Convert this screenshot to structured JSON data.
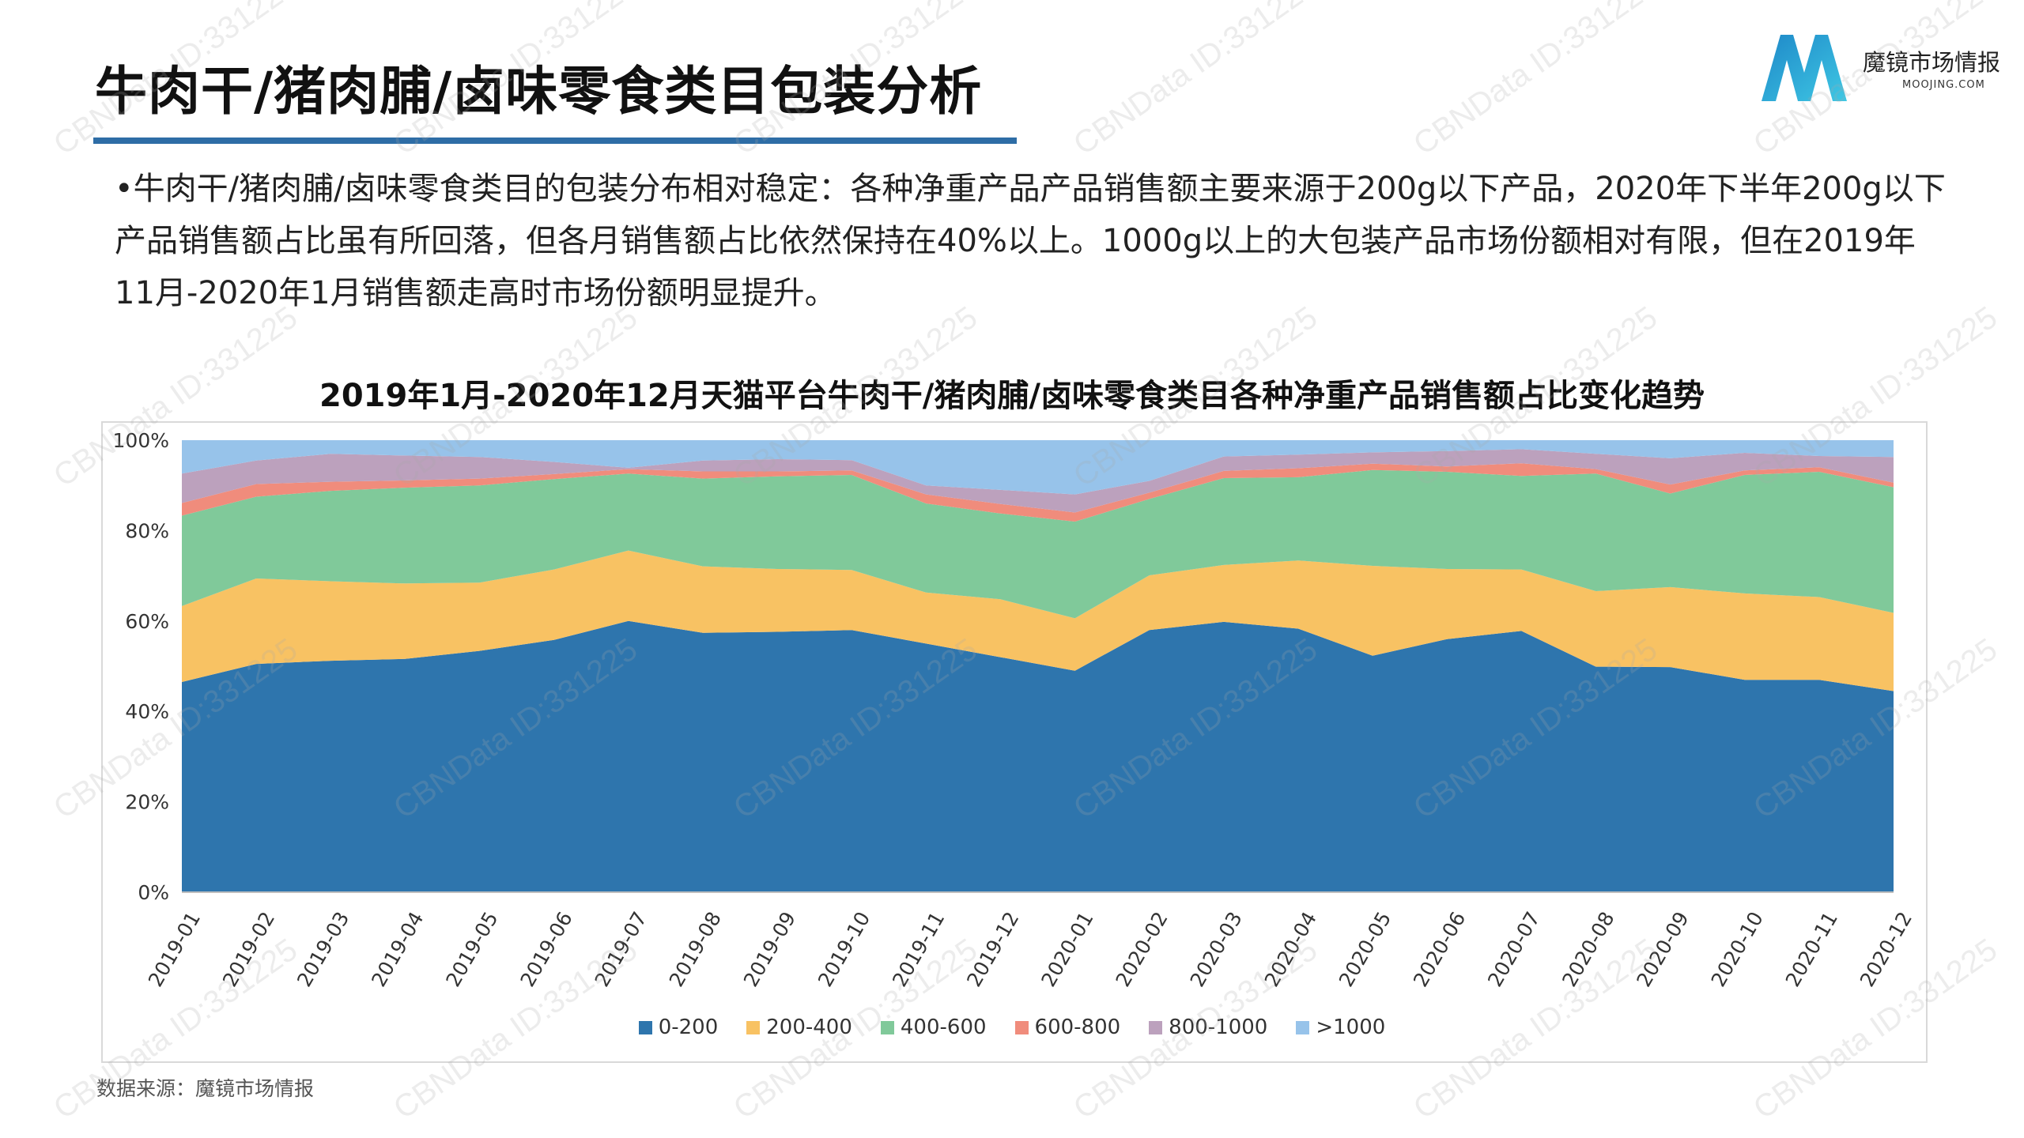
{
  "header": {
    "title": "牛肉干/猪肉脯/卤味零食类目包装分析"
  },
  "logo": {
    "name": "魔镜市场情报",
    "sub": "MOOJING.COM",
    "icon": "moojing-m-logo",
    "colors": [
      "#1e88c8",
      "#3fc8e4"
    ]
  },
  "summary": {
    "text": "•牛肉干/猪肉脯/卤味零食类目的包装分布相对稳定：各种净重产品产品销售额主要来源于200g以下产品，2020年下半年200g以下产品销售额占比虽有所回落，但各月销售额占比依然保持在40%以上。1000g以上的大包装产品市场份额相对有限，但在2019年11月-2020年1月销售额走高时市场份额明显提升。"
  },
  "source": "数据来源：魔镜市场情报",
  "watermark": "CBNData ID:331225",
  "chart_data": {
    "type": "area",
    "stacked": true,
    "title": "2019年1月-2020年12月天猫平台牛肉干/猪肉脯/卤味零食类目各种净重产品销售额占比变化趋势",
    "xlabel": "",
    "ylabel": "",
    "ylim": [
      0,
      100
    ],
    "yticks": [
      "0%",
      "20%",
      "40%",
      "60%",
      "80%",
      "100%"
    ],
    "legend_position": "bottom",
    "grid": false,
    "categories": [
      "2019-01",
      "2019-02",
      "2019-03",
      "2019-04",
      "2019-05",
      "2019-06",
      "2019-07",
      "2019-08",
      "2019-09",
      "2019-10",
      "2019-11",
      "2019-12",
      "2020-01",
      "2020-02",
      "2020-03",
      "2020-04",
      "2020-05",
      "2020-06",
      "2020-07",
      "2020-08",
      "2020-09",
      "2020-10",
      "2020-11",
      "2020-12"
    ],
    "series": [
      {
        "name": "0-200",
        "color": "#2e75ad",
        "values": [
          46.5,
          50.5,
          51.2,
          51.6,
          53.4,
          55.8,
          60.0,
          57.4,
          57.6,
          58.0,
          55.0,
          52.0,
          49.0,
          58.0,
          59.8,
          58.3,
          52.3,
          56.0,
          57.8,
          49.9,
          49.8,
          47.0,
          47.0,
          44.5
        ]
      },
      {
        "name": "200-400",
        "color": "#f8c263",
        "values": [
          16.8,
          18.9,
          17.6,
          16.7,
          15.1,
          15.6,
          15.6,
          14.7,
          13.9,
          13.3,
          11.3,
          12.8,
          11.6,
          12.1,
          12.6,
          15.1,
          19.9,
          15.5,
          13.6,
          16.7,
          17.7,
          19.1,
          18.3,
          17.3
        ]
      },
      {
        "name": "400-600",
        "color": "#80c99a",
        "values": [
          20.0,
          18.1,
          20.0,
          21.2,
          21.5,
          20.0,
          17.0,
          19.4,
          20.5,
          21.0,
          19.7,
          19.0,
          21.4,
          16.9,
          19.2,
          18.4,
          21.2,
          21.5,
          20.7,
          26.0,
          20.7,
          26.2,
          27.7,
          27.8
        ]
      },
      {
        "name": "600-800",
        "color": "#f08c7c",
        "values": [
          2.8,
          2.8,
          2.0,
          1.6,
          1.5,
          1.1,
          1.0,
          1.6,
          1.1,
          1.0,
          2.0,
          2.1,
          2.0,
          1.4,
          1.6,
          2.0,
          1.4,
          1.2,
          2.8,
          1.0,
          2.0,
          1.0,
          1.0,
          1.0
        ]
      },
      {
        "name": "800-1000",
        "color": "#bca1bd",
        "values": [
          6.5,
          5.2,
          6.2,
          5.5,
          4.8,
          2.7,
          0.3,
          2.4,
          2.7,
          2.3,
          2.0,
          3.1,
          4.0,
          2.6,
          3.2,
          3.0,
          2.5,
          3.4,
          3.1,
          3.4,
          5.8,
          3.9,
          2.5,
          5.7
        ]
      },
      {
        "name": ">1000",
        "color": "#97c3ea",
        "values": [
          7.4,
          4.5,
          3.0,
          3.4,
          3.7,
          4.8,
          6.1,
          4.5,
          4.2,
          4.4,
          10.0,
          11.0,
          12.0,
          9.0,
          3.6,
          3.2,
          2.7,
          2.4,
          2.0,
          3.0,
          4.0,
          2.8,
          3.5,
          3.7
        ]
      }
    ]
  }
}
